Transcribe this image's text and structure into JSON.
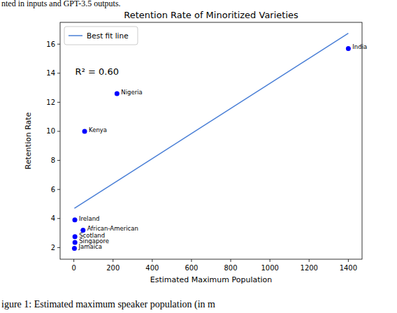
{
  "chart_data": {
    "type": "scatter",
    "title": "Retention Rate of Minoritized Varieties",
    "x_label": "Estimated Maximum Population",
    "y_label": "Retention Rate",
    "annotations": [
      "R² = 0.60"
    ],
    "caption_top": "nted in inputs and GPT-3.5 outputs.",
    "caption_bottom": "igure 1: Estimated maximum speaker population (in m",
    "xlim": [
      -70,
      1470
    ],
    "ylim": [
      1.2,
      17.5
    ],
    "xticks": [
      0,
      200,
      400,
      600,
      800,
      1000,
      1200,
      1400
    ],
    "yticks": [
      2,
      4,
      6,
      8,
      10,
      12,
      14,
      16
    ],
    "grid": false,
    "legend": "upper left",
    "series": [
      {
        "name": "Best fit line",
        "type": "line",
        "color": "#4a7fd6",
        "line_style": "solid",
        "x": [
          3,
          1400
        ],
        "values": [
          4.7,
          16.75
        ]
      },
      {
        "type": "scatter",
        "color": "#0000ff",
        "marker": "circle",
        "x": [
          1400,
          220,
          55,
          5,
          47,
          5.5,
          5.6,
          3
        ],
        "values": [
          15.7,
          12.6,
          10.0,
          3.9,
          3.2,
          2.75,
          2.35,
          1.95
        ],
        "point_labels": [
          "India",
          "Nigeria",
          "Kenya",
          "Ireland",
          "African-American",
          "Scotland",
          "Singapore",
          "Jamaica"
        ]
      }
    ]
  }
}
